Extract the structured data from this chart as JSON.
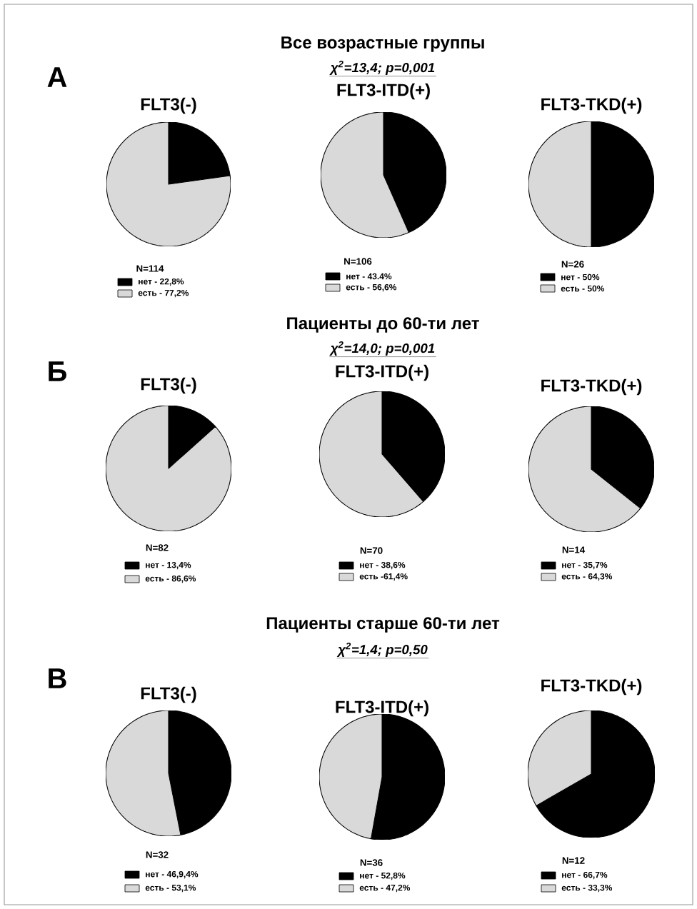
{
  "chart_data": [
    {
      "type": "pie",
      "title": "FLT3(-)",
      "categories": [
        "нет - 22,8%",
        "есть - 77,2%"
      ],
      "values": [
        22.8,
        77.2
      ],
      "colors": [
        "#000000",
        "#d9d9d9"
      ],
      "legend": "bottom",
      "annotations": [
        "А",
        "Все возрастные группы",
        "*χ$^{2}$=13,4; p=0,001*",
        "N=114"
      ]
    },
    {
      "type": "pie",
      "title": "FLT3-ITD(+)",
      "categories": [
        "нет - 43.4%",
        "есть - 56,6%"
      ],
      "values": [
        43.4,
        56.6
      ],
      "colors": [
        "#000000",
        "#d9d9d9"
      ],
      "legend": "bottom",
      "annotations": [
        "N=106"
      ]
    },
    {
      "type": "pie",
      "title": "FLT3-TKD(+)",
      "categories": [
        "нет - 50%",
        "есть - 50%"
      ],
      "values": [
        50,
        50
      ],
      "colors": [
        "#000000",
        "#d9d9d9"
      ],
      "legend": "bottom",
      "annotations": [
        "N=26"
      ]
    },
    {
      "type": "pie",
      "title": "FLT3(-)",
      "categories": [
        "нет - 13,4%",
        "есть - 86,6%"
      ],
      "values": [
        13.4,
        86.6
      ],
      "colors": [
        "#000000",
        "#d9d9d9"
      ],
      "legend": "bottom",
      "annotations": [
        "Б",
        "Пациенты до 60-ти лет",
        "*χ$^{2}$=14,0; p=0,001*",
        "N=82"
      ]
    },
    {
      "type": "pie",
      "title": "FLT3-ITD(+)",
      "categories": [
        "нет - 38,6%",
        "есть -61,4%"
      ],
      "values": [
        38.6,
        61.4
      ],
      "colors": [
        "#000000",
        "#d9d9d9"
      ],
      "legend": "bottom",
      "annotations": [
        "N=70"
      ]
    },
    {
      "type": "pie",
      "title": "FLT3-TKD(+)",
      "categories": [
        "нет - 35,7%",
        "есть - 64,3%"
      ],
      "values": [
        35.7,
        64.3
      ],
      "colors": [
        "#000000",
        "#d9d9d9"
      ],
      "legend": "bottom",
      "annotations": [
        "N=14"
      ]
    },
    {
      "type": "pie",
      "title": "FLT3(-)",
      "categories": [
        "нет - 46,9,4%",
        "есть - 53,1%"
      ],
      "values": [
        46.9,
        53.1
      ],
      "colors": [
        "#000000",
        "#d9d9d9"
      ],
      "legend": "bottom",
      "annotations": [
        "В",
        "Пациенты старше 60-ти лет",
        "*χ$^{2}$=1,4; p=0,50*",
        "N=32"
      ]
    },
    {
      "type": "pie",
      "title": "FLT3-ITD(+)",
      "categories": [
        "нет - 52,8%",
        "есть - 47,2%"
      ],
      "values": [
        52.8,
        47.2
      ],
      "colors": [
        "#000000",
        "#d9d9d9"
      ],
      "legend": "bottom",
      "annotations": [
        "N=36"
      ]
    },
    {
      "type": "pie",
      "title": "FLT3-TKD(+)",
      "categories": [
        "нет - 66,7%",
        "есть - 33,3%"
      ],
      "values": [
        66.7,
        33.3
      ],
      "colors": [
        "#000000",
        "#d9d9d9"
      ],
      "legend": "bottom",
      "annotations": [
        "N=12"
      ]
    }
  ]
}
